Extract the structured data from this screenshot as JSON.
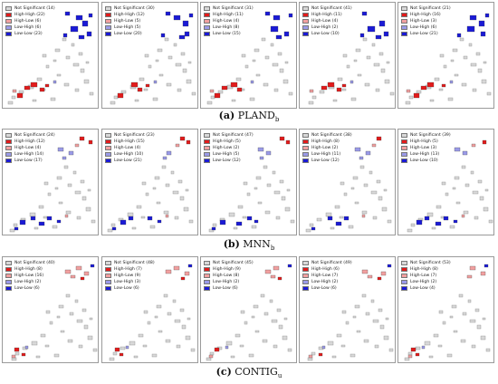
{
  "colors": {
    "not_significant": "#d8d8d8",
    "high_high": "#e21b1b",
    "high_low": "#f2a0a0",
    "low_high": "#9a9ae8",
    "low_low": "#1a1ad6"
  },
  "rows": [
    {
      "caption_letter": "(a)",
      "caption_main": "PLAND",
      "caption_sub": "b",
      "panels": [
        [
          "Not Significant (14)",
          "High-High (22)",
          "High-Low (6)",
          "Low-High (6)",
          "Low-Low (23)"
        ],
        [
          "Not Significant (30)",
          "High-High (12)",
          "High-Low (5)",
          "Low-High (5)",
          "Low-Low (20)"
        ],
        [
          "Not Significant (31)",
          "High-High (11)",
          "High-Low (4)",
          "Low-High (8)",
          "Low-Low (15)"
        ],
        [
          "Not Significant (41)",
          "High-High (11)",
          "High-Low (4)",
          "Low-High (2)",
          "Low-Low (10)"
        ],
        [
          "Not Significant (21)",
          "High-High (16)",
          "High-Low (3)",
          "Low-High (6)",
          "Low-Low (21)"
        ]
      ]
    },
    {
      "caption_letter": "(b)",
      "caption_main": "MNN",
      "caption_sub": "b",
      "panels": [
        [
          "Not Significant (24)",
          "High-High (12)",
          "High-Low (4)",
          "Low-High (14)",
          "Low-Low (17)"
        ],
        [
          "Not Significant (23)",
          "High-High (15)",
          "High-Low (4)",
          "Low-High (10)",
          "Low-Low (21)"
        ],
        [
          "Not Significant (47)",
          "High-High (5)",
          "High-Low (2)",
          "Low-High (5)",
          "Low-Low (12)"
        ],
        [
          "Not Significant (38)",
          "High-High (8)",
          "High-Low (2)",
          "Low-High (11)",
          "Low-Low (12)"
        ],
        [
          "Not Significant (39)",
          "High-High (5)",
          "High-Low (3)",
          "Low-High (13)",
          "Low-Low (10)"
        ]
      ]
    },
    {
      "caption_letter": "(c)",
      "caption_main": "CONTIG",
      "caption_sub": "u",
      "panels": [
        [
          "Not Significant (40)",
          "High-High (8)",
          "High-Low (16)",
          "Low-High (2)",
          "Low-Low (6)"
        ],
        [
          "Not Significant (48)",
          "High-High (7)",
          "High-Low (9)",
          "Low-High (3)",
          "Low-Low (6)"
        ],
        [
          "Not Significant (45)",
          "High-High (9)",
          "High-Low (8)",
          "Low-High (2)",
          "Low-Low (6)"
        ],
        [
          "Not Significant (49)",
          "High-High (6)",
          "High-Low (7)",
          "Low-High (2)",
          "Low-Low (6)"
        ],
        [
          "Not Significant (53)",
          "High-High (8)",
          "High-Low (7)",
          "Low-High (2)",
          "Low-Low (4)"
        ]
      ]
    }
  ]
}
